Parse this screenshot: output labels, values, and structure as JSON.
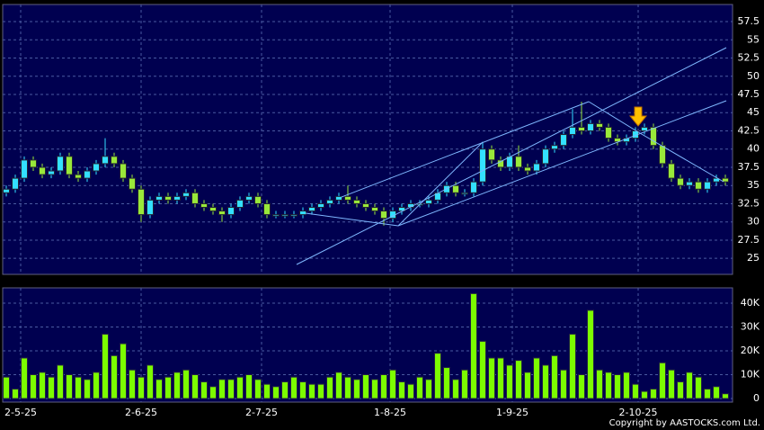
{
  "chart_data": [
    {
      "type": "candlestick",
      "up_color": "#33e0ff",
      "down_color": "#99e83a",
      "grid": true,
      "xlim": [
        -0.4,
        80.8
      ],
      "ylim": [
        22.8,
        59.85
      ],
      "yticks": [
        25,
        27.5,
        30,
        32.5,
        35,
        37.5,
        40,
        42.5,
        45,
        47.5,
        50,
        52.5,
        55,
        57.5
      ],
      "open": [
        34,
        34.5,
        36,
        38.5,
        37.5,
        36.5,
        37,
        39,
        36.5,
        36,
        37,
        38,
        39,
        38,
        36,
        34.5,
        31,
        33,
        33.5,
        33,
        33.5,
        34,
        32.5,
        32,
        31.5,
        31,
        32,
        33,
        33.5,
        32.5,
        31,
        31,
        31,
        31,
        31.5,
        32,
        32.5,
        33,
        33.5,
        33,
        32.5,
        32,
        31.5,
        30.5,
        31.5,
        32,
        32.5,
        32.5,
        33,
        34,
        35,
        34,
        34,
        35.5,
        40,
        38.5,
        37.5,
        39,
        37.5,
        37,
        38,
        40,
        40.5,
        42,
        43,
        42.5,
        43.5,
        43,
        41.5,
        41,
        41.5,
        42.5,
        43,
        40.5,
        38,
        36,
        35,
        35.5,
        34.5,
        35.5,
        36
      ],
      "high": [
        35,
        36.5,
        39,
        39,
        38,
        37.5,
        39.5,
        39.5,
        37,
        37.5,
        38.5,
        41.5,
        39.5,
        38.5,
        36.5,
        35,
        33.5,
        34,
        34,
        34,
        34.5,
        34.5,
        33,
        32.5,
        32,
        32.5,
        33.5,
        34,
        34,
        33,
        31.5,
        31.5,
        31.5,
        32,
        32.5,
        33,
        33.5,
        34,
        35,
        33.5,
        33,
        32.5,
        32,
        32,
        32.5,
        33,
        33,
        33.5,
        34.5,
        35.5,
        35.5,
        34.5,
        36,
        41,
        40.5,
        39,
        39.5,
        40.5,
        38,
        38.5,
        40.5,
        41,
        42.5,
        45.5,
        46.5,
        44,
        44,
        43.5,
        42,
        42,
        43,
        43.5,
        43.5,
        41,
        38.5,
        36.5,
        36,
        36,
        36,
        36.5,
        36.5
      ],
      "low": [
        33.5,
        34,
        35.5,
        37,
        36,
        36,
        36.5,
        36,
        35.5,
        35.5,
        36.5,
        37.5,
        37.5,
        35.5,
        34,
        30,
        30.5,
        32.5,
        32.5,
        32.5,
        33,
        32,
        31.5,
        31,
        30,
        30.5,
        31.5,
        32.5,
        32,
        30.5,
        30.5,
        30.5,
        30.5,
        30.5,
        31,
        31.5,
        32,
        32.5,
        32.5,
        32,
        31.5,
        31,
        29.5,
        30,
        31,
        31.5,
        32,
        32,
        32.5,
        33.5,
        33.5,
        33.5,
        33.5,
        35,
        38,
        37,
        37,
        37,
        36.5,
        36.5,
        37.5,
        39.5,
        40,
        41.5,
        42,
        42,
        42.5,
        41,
        40.5,
        40.5,
        41,
        42,
        40,
        37.5,
        35.5,
        34.5,
        34.5,
        34,
        34,
        35,
        35
      ],
      "close": [
        34.5,
        36,
        38.5,
        37.5,
        36.5,
        37,
        39,
        36.5,
        36,
        37,
        38,
        39,
        38,
        36,
        34.5,
        31,
        33,
        33.5,
        33,
        33.5,
        34,
        32.5,
        32,
        31.5,
        31,
        32,
        33,
        33.5,
        32.5,
        31,
        31,
        31,
        31,
        31.5,
        32,
        32.5,
        33,
        33.5,
        33,
        32.5,
        32,
        31.5,
        30.5,
        31.5,
        32,
        32.5,
        32.5,
        33,
        34,
        35,
        34,
        34,
        35.5,
        40,
        38.5,
        37.5,
        39,
        37.5,
        37,
        38,
        40,
        40.5,
        42,
        43,
        42.5,
        43.5,
        43,
        41.5,
        41,
        41.5,
        42.5,
        43,
        40.5,
        38,
        36,
        35,
        35.5,
        34.5,
        35.5,
        36,
        35.5
      ]
    },
    {
      "type": "bar",
      "color": "#7cfc00",
      "grid": true,
      "xlim": [
        -0.4,
        80.8
      ],
      "ylim": [
        -1500,
        46400
      ],
      "yticks": [
        0,
        {
          "value": 10000,
          "label": "10K"
        },
        {
          "value": 20000,
          "label": "20K"
        },
        {
          "value": 30000,
          "label": "30K"
        },
        {
          "value": 40000,
          "label": "40K"
        }
      ],
      "xticks": [
        {
          "value": 1.6,
          "label": "2-5-25"
        },
        {
          "value": 15,
          "label": "2-6-25"
        },
        {
          "value": 28.4,
          "label": "2-7-25"
        },
        {
          "value": 42.7,
          "label": "1-8-25"
        },
        {
          "value": 56.3,
          "label": "1-9-25"
        },
        {
          "value": 70.3,
          "label": "2-10-25"
        }
      ],
      "values": [
        9000,
        4000,
        17000,
        10000,
        11000,
        9000,
        14000,
        10000,
        9000,
        8000,
        11000,
        27000,
        18000,
        23000,
        12000,
        9000,
        14000,
        8000,
        9000,
        11000,
        12000,
        10000,
        7000,
        5000,
        8000,
        8000,
        9000,
        10000,
        8000,
        6000,
        5000,
        7000,
        9000,
        7000,
        6000,
        6000,
        9000,
        11000,
        9000,
        8000,
        10000,
        8000,
        10000,
        12000,
        7000,
        6000,
        9000,
        8000,
        19000,
        13000,
        8000,
        12000,
        44000,
        24000,
        17000,
        17000,
        14000,
        16000,
        11000,
        17000,
        14000,
        18000,
        12000,
        27000,
        10000,
        37000,
        12000,
        11000,
        10000,
        11000,
        6000,
        3000,
        4000,
        15000,
        12000,
        7000,
        11000,
        9000,
        4000,
        5000,
        2000
      ]
    }
  ],
  "footer": "Copyright by AASTOCKS.com Ltd."
}
